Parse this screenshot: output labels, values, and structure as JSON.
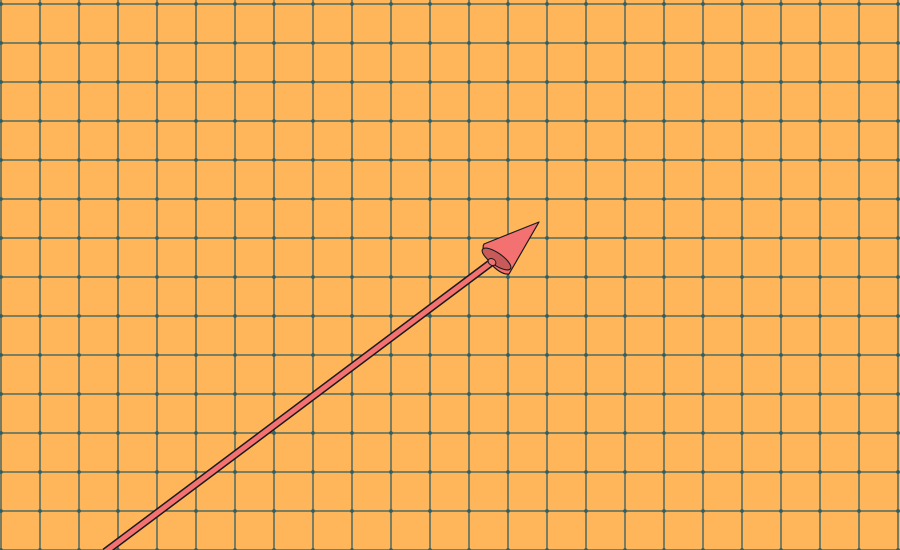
{
  "scene": {
    "background_color": "#FFB55A",
    "grid_line_color": "#2F5E63",
    "grid_dot_color": "#2F5E63",
    "arrow_fill_color": "#F47171",
    "arrow_outline_color": "#1A1A1A",
    "arrow_cap_color": "#C95A5A"
  },
  "icons": {
    "arrow": "arrow-3d-icon"
  }
}
